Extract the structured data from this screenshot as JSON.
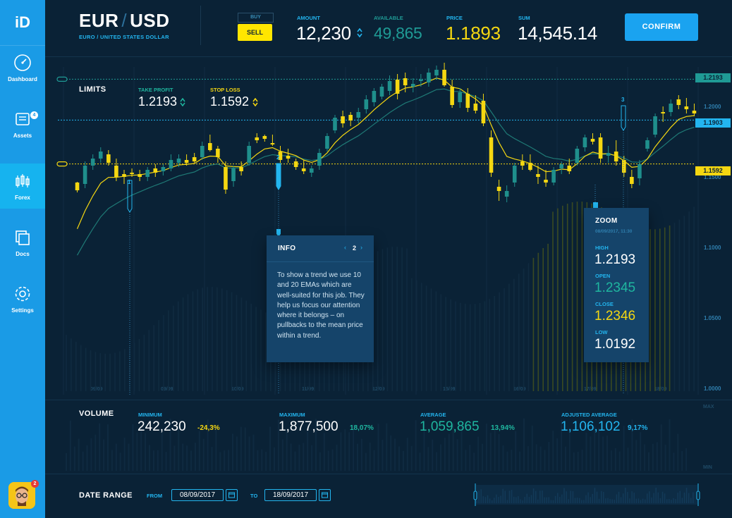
{
  "sidebar": {
    "logo": "iD",
    "items": [
      {
        "label": "Dashboard"
      },
      {
        "label": "Assets",
        "badge": "4"
      },
      {
        "label": "Forex"
      },
      {
        "label": "Docs"
      },
      {
        "label": "Settings"
      }
    ],
    "avatar_badge": "2"
  },
  "header": {
    "base": "EUR",
    "quote": "USD",
    "subtitle": "EURO / UNITED STATES DOLLAR",
    "buy_label": "BUY",
    "sell_label": "SELL",
    "amount_label": "AMOUNT",
    "amount": "12,230",
    "available_label": "AVAILABLE",
    "available": "49,865",
    "price_label": "PRICE",
    "price": "1.1893",
    "sum_label": "SUM",
    "sum": "14,545.14",
    "confirm_label": "CONFIRM"
  },
  "limits": {
    "title": "LIMITS",
    "take_profit_label": "TAKE PROFIT",
    "take_profit": "1.2193",
    "stop_loss_label": "STOP LOSS",
    "stop_loss": "1.1592"
  },
  "levels": {
    "take_profit": "1.2193",
    "current": "1.1903",
    "stop_loss": "1.1592"
  },
  "markers": [
    "1",
    "2",
    "3"
  ],
  "info": {
    "title": "INFO",
    "page": "2",
    "text": "To show a trend we use 10 and 20 EMAs which are well-suited for this job. They help us focus our attention where it belongs – on pullbacks to the mean price within a trend."
  },
  "zoom": {
    "title": "ZOOM",
    "timestamp": "08/09/2017, 11:30",
    "high_label": "HIGH",
    "high": "1.2193",
    "open_label": "OPEN",
    "open": "1.2345",
    "close_label": "CLOSE",
    "close": "1.2346",
    "low_label": "LOW",
    "low": "1.0192"
  },
  "volume": {
    "title": "VOLUME",
    "min_label": "MINIMUM",
    "min": "242,230",
    "min_change": "-24,3%",
    "max_label": "MAXIMUM",
    "max": "1,877,500",
    "max_change": "18,07%",
    "avg_label": "AVERAGE",
    "avg": "1,059,865",
    "avg_change": "13,94%",
    "adj_label": "ADJUSTED AVERAGE",
    "adj": "1,106,102",
    "adj_change": "9,17%",
    "axis_max": "MAX",
    "axis_min": "MIN"
  },
  "date_range": {
    "title": "DATE RANGE",
    "from_label": "FROM",
    "from": "08/09/2017",
    "to_label": "TO",
    "to": "18/09/2017"
  },
  "colors": {
    "bg": "#0a2236",
    "accent": "#23b5ef",
    "up": "#1f8f8c",
    "down": "#f5d711",
    "sell": "#ffe600"
  },
  "chart_data": {
    "type": "candlestick",
    "x_ticks": [
      "09/09",
      "09/09",
      "10/09",
      "11/09",
      "12/09",
      "15/09",
      "16/09",
      "17/09",
      "18/09"
    ],
    "y_ticks": [
      "1.2000",
      "1.1500",
      "1.1000",
      "1.0500",
      "1.0000"
    ],
    "ylim": [
      1.0,
      1.23
    ],
    "candles": [
      [
        1.1405,
        1.1465,
        1.139,
        1.146,
        "d"
      ],
      [
        1.145,
        1.161,
        1.142,
        1.158,
        "u"
      ],
      [
        1.158,
        1.166,
        1.155,
        1.163,
        "u"
      ],
      [
        1.163,
        1.171,
        1.16,
        1.168,
        "u"
      ],
      [
        1.166,
        1.169,
        1.158,
        1.16,
        "d"
      ],
      [
        1.158,
        1.163,
        1.147,
        1.15,
        "d"
      ],
      [
        1.15,
        1.155,
        1.145,
        1.152,
        "d"
      ],
      [
        1.152,
        1.156,
        1.15,
        1.153,
        "d"
      ],
      [
        1.15,
        1.155,
        1.147,
        1.152,
        "d"
      ],
      [
        1.15,
        1.157,
        1.147,
        1.155,
        "u"
      ],
      [
        1.153,
        1.159,
        1.15,
        1.156,
        "d"
      ],
      [
        1.154,
        1.159,
        1.151,
        1.157,
        "u"
      ],
      [
        1.156,
        1.166,
        1.154,
        1.162,
        "u"
      ],
      [
        1.16,
        1.166,
        1.157,
        1.163,
        "u"
      ],
      [
        1.162,
        1.166,
        1.158,
        1.16,
        "d"
      ],
      [
        1.164,
        1.167,
        1.16,
        1.161,
        "d"
      ],
      [
        1.164,
        1.175,
        1.162,
        1.172,
        "u"
      ],
      [
        1.174,
        1.18,
        1.168,
        1.169,
        "d"
      ],
      [
        1.17,
        1.172,
        1.16,
        1.164,
        "d"
      ],
      [
        1.157,
        1.161,
        1.138,
        1.141,
        "d"
      ],
      [
        1.147,
        1.158,
        1.143,
        1.156,
        "u"
      ],
      [
        1.154,
        1.161,
        1.151,
        1.157,
        "d"
      ],
      [
        1.16,
        1.175,
        1.158,
        1.172,
        "u"
      ],
      [
        1.176,
        1.181,
        1.174,
        1.178,
        "d"
      ],
      [
        1.177,
        1.18,
        1.175,
        1.179,
        "d"
      ],
      [
        1.174,
        1.18,
        1.172,
        1.173,
        "d"
      ],
      [
        1.168,
        1.172,
        1.16,
        1.162,
        "d"
      ],
      [
        1.165,
        1.17,
        1.16,
        1.163,
        "d"
      ],
      [
        1.157,
        1.163,
        1.155,
        1.161,
        "d"
      ],
      [
        1.156,
        1.162,
        1.152,
        1.154,
        "d"
      ],
      [
        1.153,
        1.158,
        1.15,
        1.156,
        "u"
      ],
      [
        1.158,
        1.17,
        1.155,
        1.167,
        "u"
      ],
      [
        1.17,
        1.181,
        1.168,
        1.179,
        "u"
      ],
      [
        1.183,
        1.194,
        1.181,
        1.192,
        "u"
      ],
      [
        1.188,
        1.197,
        1.185,
        1.193,
        "d"
      ],
      [
        1.19,
        1.196,
        1.186,
        1.194,
        "d"
      ],
      [
        1.192,
        1.199,
        1.188,
        1.196,
        "u"
      ],
      [
        1.198,
        1.208,
        1.195,
        1.205,
        "u"
      ],
      [
        1.203,
        1.213,
        1.2,
        1.211,
        "u"
      ],
      [
        1.207,
        1.216,
        1.205,
        1.214,
        "u"
      ],
      [
        1.211,
        1.222,
        1.208,
        1.218,
        "u"
      ],
      [
        1.209,
        1.223,
        1.205,
        1.219,
        "d"
      ],
      [
        1.215,
        1.224,
        1.21,
        1.22,
        "d"
      ],
      [
        1.214,
        1.22,
        1.21,
        1.216,
        "u"
      ],
      [
        1.218,
        1.223,
        1.214,
        1.219,
        "u"
      ],
      [
        1.217,
        1.227,
        1.214,
        1.224,
        "u"
      ],
      [
        1.222,
        1.229,
        1.219,
        1.226,
        "u"
      ],
      [
        1.226,
        1.231,
        1.214,
        1.215,
        "d"
      ],
      [
        1.214,
        1.219,
        1.199,
        1.201,
        "d"
      ],
      [
        1.203,
        1.213,
        1.199,
        1.21,
        "u"
      ],
      [
        1.209,
        1.213,
        1.196,
        1.199,
        "d"
      ],
      [
        1.202,
        1.208,
        1.195,
        1.197,
        "d"
      ],
      [
        1.204,
        1.209,
        1.186,
        1.188,
        "d"
      ],
      [
        1.178,
        1.183,
        1.15,
        1.153,
        "d"
      ],
      [
        1.14,
        1.148,
        1.133,
        1.143,
        "d"
      ],
      [
        1.136,
        1.144,
        1.132,
        1.14,
        "u"
      ],
      [
        1.146,
        1.16,
        1.143,
        1.158,
        "u"
      ],
      [
        1.161,
        1.166,
        1.155,
        1.158,
        "d"
      ],
      [
        1.16,
        1.166,
        1.154,
        1.155,
        "d"
      ],
      [
        1.152,
        1.158,
        1.145,
        1.15,
        "d"
      ],
      [
        1.148,
        1.155,
        1.143,
        1.146,
        "d"
      ],
      [
        1.146,
        1.157,
        1.144,
        1.155,
        "u"
      ],
      [
        1.156,
        1.161,
        1.152,
        1.159,
        "u"
      ],
      [
        1.158,
        1.163,
        1.152,
        1.154,
        "d"
      ],
      [
        1.16,
        1.172,
        1.158,
        1.17,
        "u"
      ],
      [
        1.171,
        1.18,
        1.168,
        1.178,
        "u"
      ],
      [
        1.177,
        1.181,
        1.173,
        1.175,
        "d"
      ],
      [
        1.178,
        1.181,
        1.16,
        1.163,
        "d"
      ],
      [
        1.165,
        1.172,
        1.16,
        1.167,
        "u"
      ],
      [
        1.168,
        1.176,
        1.158,
        1.161,
        "d"
      ],
      [
        1.162,
        1.165,
        1.15,
        1.153,
        "d"
      ],
      [
        1.15,
        1.155,
        1.142,
        1.145,
        "d"
      ],
      [
        1.149,
        1.162,
        1.144,
        1.159,
        "u"
      ],
      [
        1.17,
        1.178,
        1.168,
        1.176,
        "u"
      ],
      [
        1.18,
        1.195,
        1.178,
        1.193,
        "u"
      ],
      [
        1.195,
        1.2,
        1.189,
        1.196,
        "d"
      ],
      [
        1.196,
        1.205,
        1.193,
        1.202,
        "u"
      ],
      [
        1.201,
        1.208,
        1.198,
        1.205,
        "d"
      ],
      [
        1.2,
        1.206,
        1.195,
        1.198,
        "d"
      ],
      [
        1.197,
        1.202,
        1.193,
        1.195,
        "d"
      ]
    ]
  }
}
